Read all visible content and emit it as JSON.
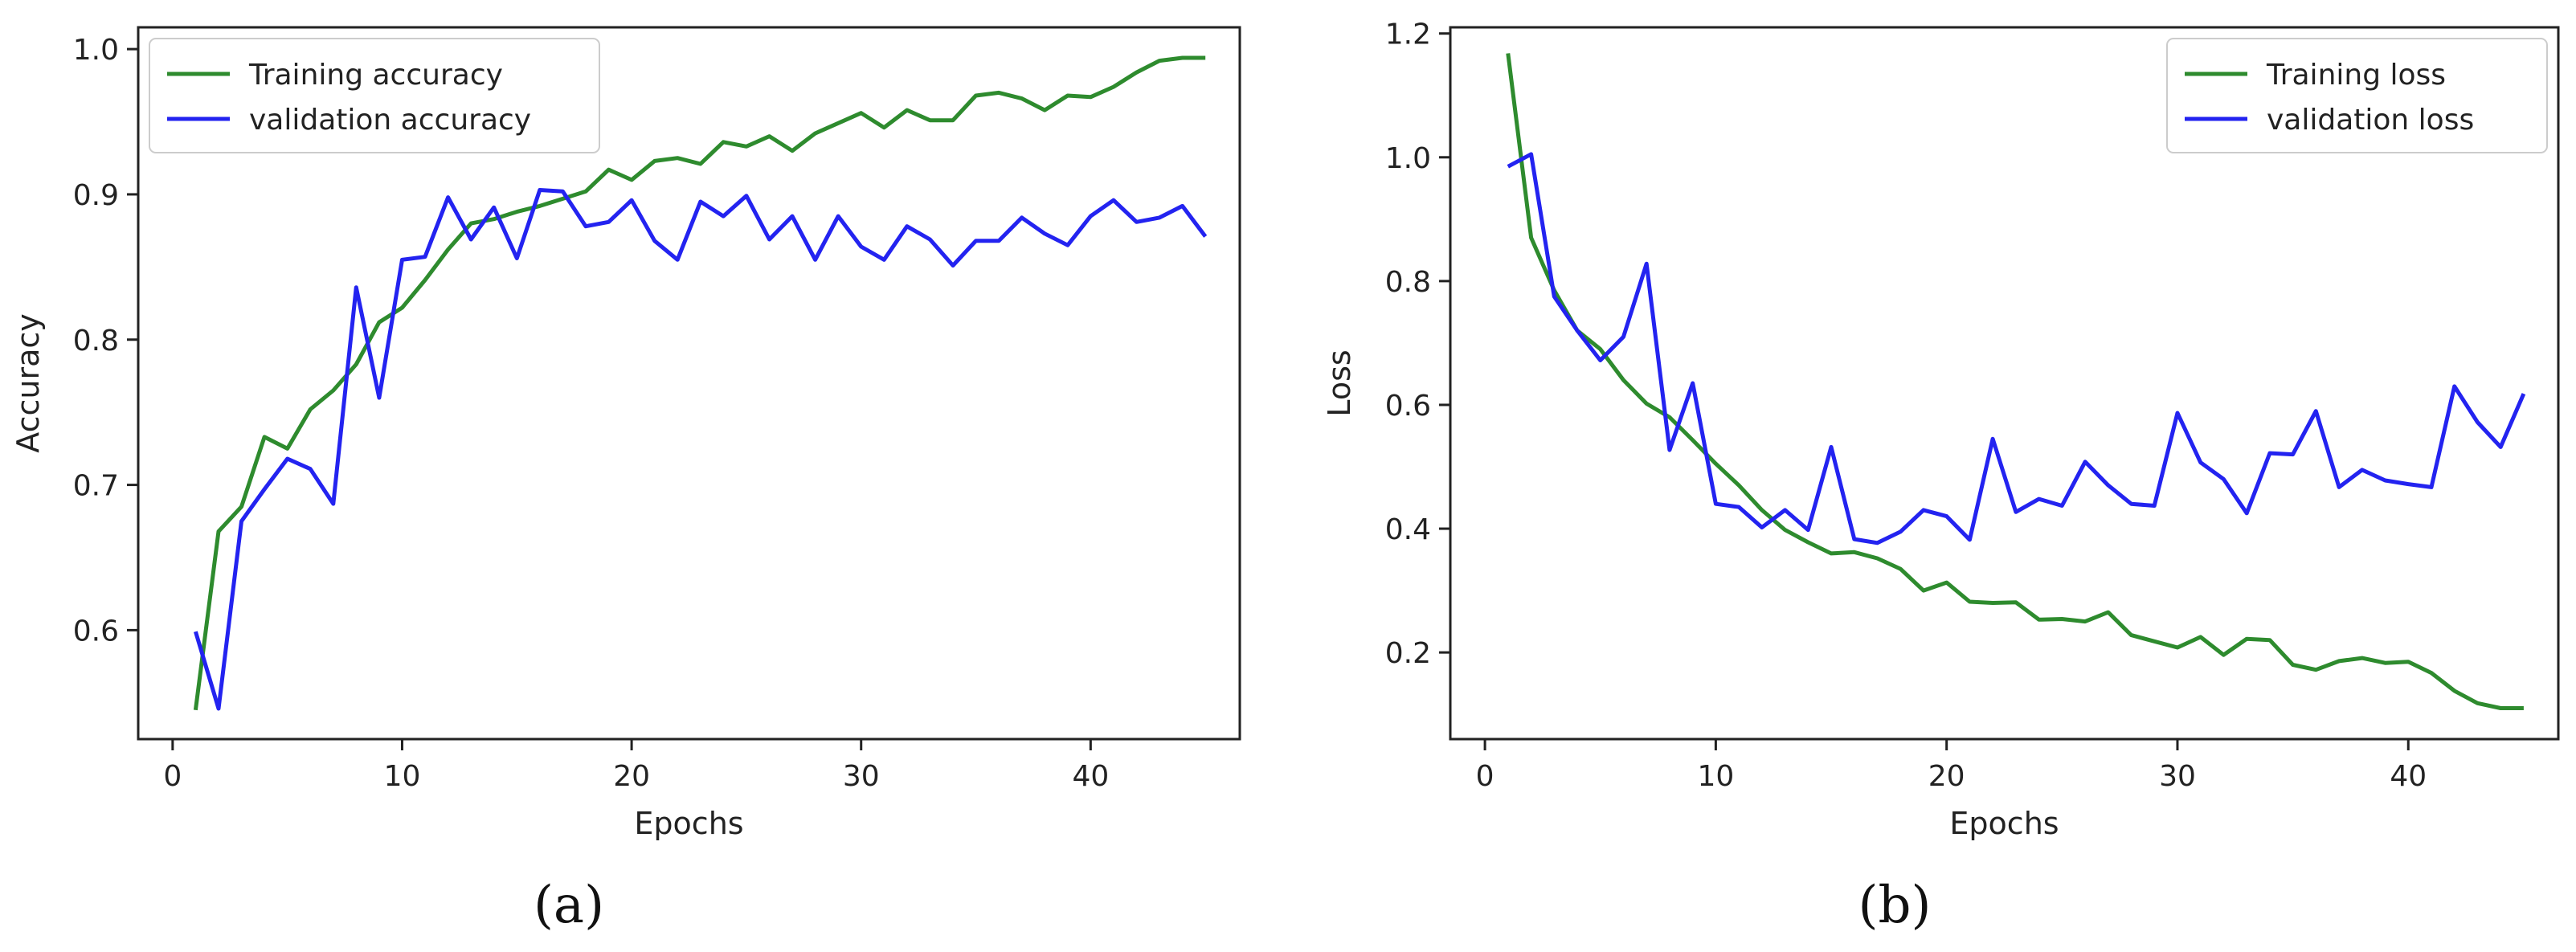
{
  "panels": [
    {
      "label": "(a)"
    },
    {
      "label": "(b)"
    }
  ],
  "chart_data": [
    {
      "type": "line",
      "title": "",
      "xlabel": "Epochs",
      "ylabel": "Accuracy",
      "xlim": [
        -1.5,
        46.5
      ],
      "ylim": [
        0.525,
        1.015
      ],
      "xticks": [
        0,
        10,
        20,
        30,
        40
      ],
      "yticks": [
        0.6,
        0.7,
        0.8,
        0.9,
        1.0
      ],
      "xtick_labels": [
        "0",
        "10",
        "20",
        "30",
        "40"
      ],
      "ytick_labels": [
        "0.6",
        "0.7",
        "0.8",
        "0.9",
        "1.0"
      ],
      "grid": false,
      "legend_position": "upper-left",
      "x": [
        1,
        2,
        3,
        4,
        5,
        6,
        7,
        8,
        9,
        10,
        11,
        12,
        13,
        14,
        15,
        16,
        17,
        18,
        19,
        20,
        21,
        22,
        23,
        24,
        25,
        26,
        27,
        28,
        29,
        30,
        31,
        32,
        33,
        34,
        35,
        36,
        37,
        38,
        39,
        40,
        41,
        42,
        43,
        44,
        45
      ],
      "series": [
        {
          "name": "Training accuracy",
          "color": "#2e8b2e",
          "values": [
            0.545,
            0.668,
            0.685,
            0.733,
            0.725,
            0.752,
            0.765,
            0.783,
            0.812,
            0.822,
            0.841,
            0.862,
            0.88,
            0.883,
            0.888,
            0.892,
            0.897,
            0.902,
            0.917,
            0.91,
            0.923,
            0.925,
            0.921,
            0.936,
            0.933,
            0.94,
            0.93,
            0.942,
            0.949,
            0.956,
            0.946,
            0.958,
            0.951,
            0.951,
            0.968,
            0.97,
            0.966,
            0.958,
            0.968,
            0.967,
            0.974,
            0.984,
            0.992,
            0.994,
            0.994
          ]
        },
        {
          "name": "validation accuracy",
          "color": "#2323f0",
          "values": [
            0.599,
            0.546,
            0.675,
            0.697,
            0.718,
            0.711,
            0.687,
            0.836,
            0.76,
            0.855,
            0.857,
            0.898,
            0.869,
            0.891,
            0.856,
            0.903,
            0.902,
            0.878,
            0.881,
            0.896,
            0.868,
            0.855,
            0.895,
            0.885,
            0.899,
            0.869,
            0.885,
            0.855,
            0.885,
            0.864,
            0.855,
            0.878,
            0.869,
            0.851,
            0.868,
            0.868,
            0.884,
            0.873,
            0.865,
            0.885,
            0.896,
            0.881,
            0.884,
            0.892,
            0.871
          ]
        }
      ]
    },
    {
      "type": "line",
      "title": "",
      "xlabel": "Epochs",
      "ylabel": "Loss",
      "xlim": [
        -1.5,
        46.5
      ],
      "ylim": [
        0.06,
        1.21
      ],
      "xticks": [
        0,
        10,
        20,
        30,
        40
      ],
      "yticks": [
        0.2,
        0.4,
        0.6,
        0.8,
        1.0,
        1.2
      ],
      "xtick_labels": [
        "0",
        "10",
        "20",
        "30",
        "40"
      ],
      "ytick_labels": [
        "0.2",
        "0.4",
        "0.6",
        "0.8",
        "1.0",
        "1.2"
      ],
      "grid": false,
      "legend_position": "upper-right",
      "x": [
        1,
        2,
        3,
        4,
        5,
        6,
        7,
        8,
        9,
        10,
        11,
        12,
        13,
        14,
        15,
        16,
        17,
        18,
        19,
        20,
        21,
        22,
        23,
        24,
        25,
        26,
        27,
        28,
        29,
        30,
        31,
        32,
        33,
        34,
        35,
        36,
        37,
        38,
        39,
        40,
        41,
        42,
        43,
        44,
        45
      ],
      "series": [
        {
          "name": "Training loss",
          "color": "#2e8b2e",
          "values": [
            1.168,
            0.87,
            0.785,
            0.72,
            0.69,
            0.64,
            0.602,
            0.58,
            0.543,
            0.505,
            0.47,
            0.43,
            0.398,
            0.378,
            0.36,
            0.362,
            0.352,
            0.335,
            0.3,
            0.313,
            0.282,
            0.28,
            0.281,
            0.253,
            0.254,
            0.25,
            0.265,
            0.228,
            0.218,
            0.208,
            0.225,
            0.196,
            0.222,
            0.22,
            0.18,
            0.172,
            0.186,
            0.191,
            0.183,
            0.185,
            0.167,
            0.138,
            0.118,
            0.11,
            0.11
          ]
        },
        {
          "name": "validation loss",
          "color": "#2323f0",
          "values": [
            0.985,
            1.005,
            0.775,
            0.72,
            0.672,
            0.71,
            0.828,
            0.527,
            0.635,
            0.44,
            0.435,
            0.402,
            0.43,
            0.398,
            0.532,
            0.383,
            0.377,
            0.395,
            0.43,
            0.42,
            0.382,
            0.545,
            0.427,
            0.448,
            0.437,
            0.508,
            0.47,
            0.44,
            0.437,
            0.587,
            0.507,
            0.48,
            0.425,
            0.522,
            0.52,
            0.59,
            0.467,
            0.495,
            0.478,
            0.472,
            0.467,
            0.63,
            0.572,
            0.532,
            0.618
          ]
        }
      ]
    }
  ]
}
